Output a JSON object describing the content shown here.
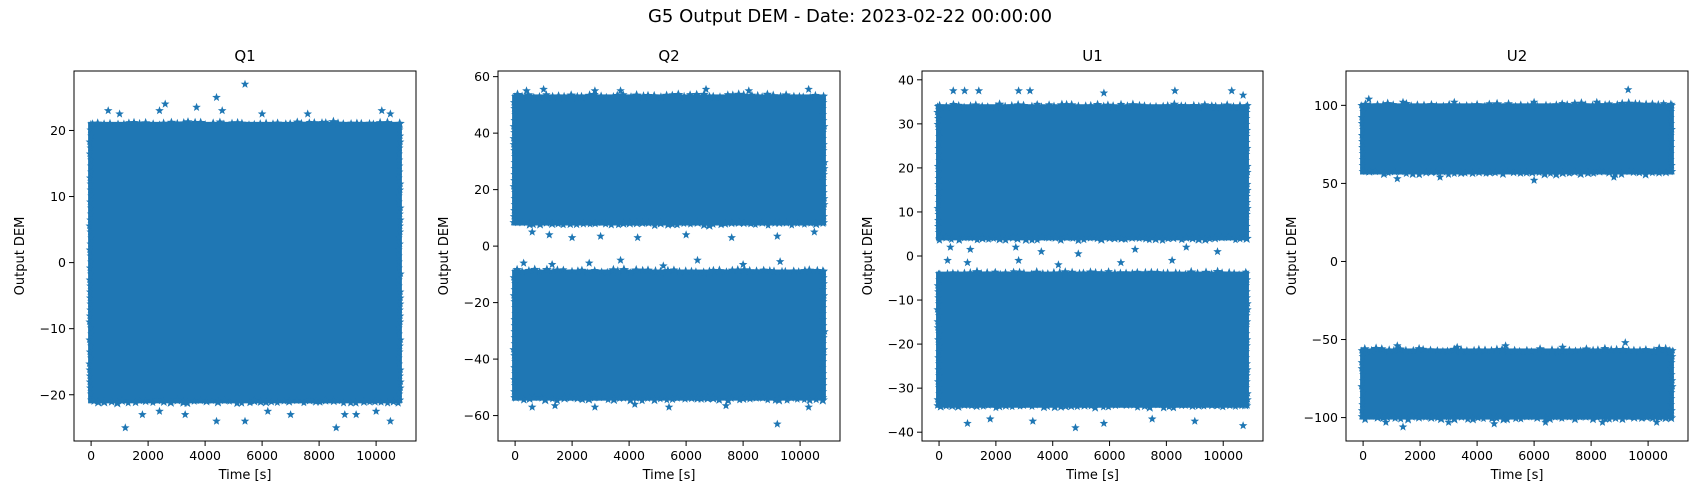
{
  "figure": {
    "suptitle": "G5 Output DEM - Date: 2023-02-22 00:00:00"
  },
  "chart_data": [
    {
      "type": "scatter",
      "title": "Q1",
      "xlabel": "Time [s]",
      "ylabel": "Output DEM",
      "marker": "star",
      "color": "#1f77b4",
      "xlim": [
        -600,
        11400
      ],
      "ylim": [
        -27,
        29
      ],
      "xticks": [
        0,
        2000,
        4000,
        6000,
        8000,
        10000
      ],
      "yticks": [
        -20,
        -10,
        0,
        10,
        20
      ],
      "time_range": [
        0,
        10800
      ],
      "bands": [
        [
          -21,
          21
        ]
      ],
      "outliers": [
        [
          600,
          23
        ],
        [
          1000,
          22.5
        ],
        [
          2400,
          23
        ],
        [
          2600,
          24
        ],
        [
          3700,
          23.5
        ],
        [
          4400,
          25
        ],
        [
          4600,
          23
        ],
        [
          5400,
          27
        ],
        [
          6000,
          22.5
        ],
        [
          7600,
          22.5
        ],
        [
          10200,
          23
        ],
        [
          10500,
          22.5
        ],
        [
          1200,
          -25
        ],
        [
          1800,
          -23
        ],
        [
          2400,
          -22.5
        ],
        [
          3300,
          -23
        ],
        [
          4400,
          -24
        ],
        [
          5400,
          -24
        ],
        [
          6200,
          -22.5
        ],
        [
          7000,
          -23
        ],
        [
          8600,
          -25
        ],
        [
          8900,
          -23
        ],
        [
          9300,
          -23
        ],
        [
          10000,
          -22.5
        ],
        [
          10500,
          -24
        ]
      ]
    },
    {
      "type": "scatter",
      "title": "Q2",
      "xlabel": "Time [s]",
      "ylabel": "Output DEM",
      "marker": "star",
      "color": "#1f77b4",
      "xlim": [
        -600,
        11400
      ],
      "ylim": [
        -69,
        62
      ],
      "xticks": [
        0,
        2000,
        4000,
        6000,
        8000,
        10000
      ],
      "yticks": [
        -60,
        -40,
        -20,
        0,
        20,
        40,
        60
      ],
      "time_range": [
        0,
        10800
      ],
      "bands": [
        [
          8,
          53
        ],
        [
          -54,
          -9
        ]
      ],
      "outliers": [
        [
          400,
          55
        ],
        [
          1000,
          55.5
        ],
        [
          2800,
          55
        ],
        [
          3700,
          55
        ],
        [
          6700,
          55.5
        ],
        [
          8200,
          55
        ],
        [
          10300,
          55.5
        ],
        [
          600,
          5
        ],
        [
          1200,
          4
        ],
        [
          2000,
          3
        ],
        [
          3000,
          3.5
        ],
        [
          4300,
          3
        ],
        [
          6000,
          4
        ],
        [
          7600,
          3
        ],
        [
          9200,
          3.5
        ],
        [
          10500,
          5
        ],
        [
          300,
          -6
        ],
        [
          1300,
          -6.5
        ],
        [
          2600,
          -6
        ],
        [
          3700,
          -5
        ],
        [
          5200,
          -7
        ],
        [
          6400,
          -5
        ],
        [
          8000,
          -6.5
        ],
        [
          9300,
          -5.5
        ],
        [
          600,
          -57
        ],
        [
          1400,
          -56.5
        ],
        [
          2800,
          -57
        ],
        [
          4200,
          -56
        ],
        [
          5400,
          -57
        ],
        [
          7400,
          -56.5
        ],
        [
          9200,
          -63
        ],
        [
          10300,
          -57
        ]
      ]
    },
    {
      "type": "scatter",
      "title": "U1",
      "xlabel": "Time [s]",
      "ylabel": "Output DEM",
      "marker": "star",
      "color": "#1f77b4",
      "xlim": [
        -600,
        11400
      ],
      "ylim": [
        -42,
        42
      ],
      "xticks": [
        0,
        2000,
        4000,
        6000,
        8000,
        10000
      ],
      "yticks": [
        -40,
        -30,
        -20,
        -10,
        0,
        10,
        20,
        30,
        40
      ],
      "time_range": [
        0,
        10800
      ],
      "bands": [
        [
          4,
          34
        ],
        [
          -34,
          -4
        ]
      ],
      "outliers": [
        [
          500,
          37.5
        ],
        [
          900,
          37.5
        ],
        [
          1400,
          37.5
        ],
        [
          2800,
          37.5
        ],
        [
          3200,
          37.5
        ],
        [
          5800,
          37
        ],
        [
          8300,
          37.5
        ],
        [
          10300,
          37.5
        ],
        [
          10700,
          36.5
        ],
        [
          400,
          2
        ],
        [
          1100,
          1.5
        ],
        [
          2700,
          2
        ],
        [
          3600,
          1
        ],
        [
          4900,
          0.5
        ],
        [
          6900,
          1.5
        ],
        [
          8700,
          2
        ],
        [
          9800,
          1
        ],
        [
          300,
          -1
        ],
        [
          1000,
          -1.5
        ],
        [
          2800,
          -1
        ],
        [
          4200,
          -2
        ],
        [
          6400,
          -1.5
        ],
        [
          8200,
          -1
        ],
        [
          1000,
          -38
        ],
        [
          1800,
          -37
        ],
        [
          3300,
          -37.5
        ],
        [
          4800,
          -39
        ],
        [
          5800,
          -38
        ],
        [
          7500,
          -37
        ],
        [
          9000,
          -37.5
        ],
        [
          10700,
          -38.5
        ]
      ]
    },
    {
      "type": "scatter",
      "title": "U2",
      "xlabel": "Time [s]",
      "ylabel": "Output DEM",
      "marker": "star",
      "color": "#1f77b4",
      "xlim": [
        -600,
        11400
      ],
      "ylim": [
        -115,
        122
      ],
      "xticks": [
        0,
        2000,
        4000,
        6000,
        8000,
        10000
      ],
      "yticks": [
        -100,
        -50,
        0,
        50,
        100
      ],
      "time_range": [
        0,
        10800
      ],
      "bands": [
        [
          57,
          100
        ],
        [
          -100,
          -57
        ]
      ],
      "outliers": [
        [
          200,
          104
        ],
        [
          1400,
          102
        ],
        [
          3200,
          102
        ],
        [
          6000,
          102
        ],
        [
          8200,
          102
        ],
        [
          9300,
          110
        ],
        [
          1200,
          53
        ],
        [
          2700,
          54
        ],
        [
          6000,
          52
        ],
        [
          8800,
          54
        ],
        [
          1200,
          -54
        ],
        [
          3300,
          -55
        ],
        [
          5000,
          -54
        ],
        [
          7000,
          -55
        ],
        [
          9200,
          -52
        ],
        [
          800,
          -103
        ],
        [
          1400,
          -106
        ],
        [
          3000,
          -103
        ],
        [
          4600,
          -104
        ],
        [
          6400,
          -103
        ],
        [
          8400,
          -103
        ],
        [
          10300,
          -103
        ]
      ]
    }
  ]
}
